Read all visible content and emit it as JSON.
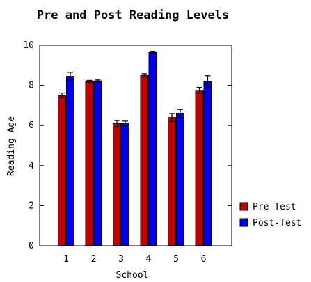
{
  "chart_data": {
    "type": "bar",
    "title": "Pre and Post Reading Levels",
    "xlabel": "School",
    "ylabel": "Reading Age",
    "categories": [
      "1",
      "2",
      "3",
      "4",
      "5",
      "6"
    ],
    "ylim": [
      0,
      10
    ],
    "yticks": [
      "0",
      "2",
      "4",
      "6",
      "8",
      "10"
    ],
    "grid": false,
    "legend_position": "right",
    "series": [
      {
        "name": "Pre-Test",
        "color": "#c00000",
        "values": [
          7.5,
          8.2,
          6.1,
          8.5,
          6.4,
          7.75
        ],
        "errors": [
          0.12,
          0.05,
          0.15,
          0.08,
          0.2,
          0.15
        ]
      },
      {
        "name": "Post-Test",
        "color": "#0000ee",
        "values": [
          8.45,
          8.22,
          6.1,
          9.65,
          6.6,
          8.2
        ],
        "errors": [
          0.2,
          0.05,
          0.12,
          0.05,
          0.2,
          0.28
        ]
      }
    ]
  }
}
